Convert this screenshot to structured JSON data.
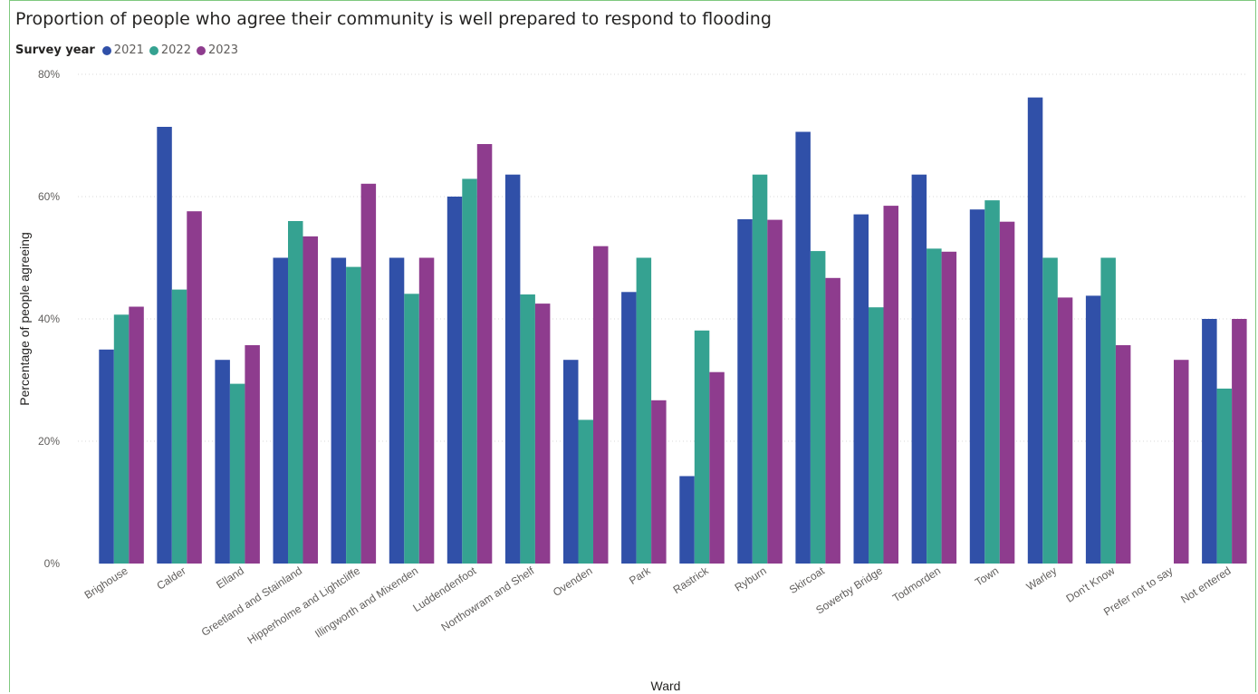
{
  "colors": {
    "2021": "#3050a8",
    "2022": "#35a291",
    "2023": "#8e3c8e",
    "grid": "#d9d9d9"
  },
  "legend": {
    "title": "Survey year"
  },
  "chart_data": {
    "type": "bar",
    "title": "Proportion of people who agree their community is well prepared to respond to flooding",
    "xlabel": "Ward",
    "ylabel": "Percentage of people agreeing",
    "ylim": [
      0,
      80
    ],
    "yticks": [
      "0%",
      "20%",
      "40%",
      "60%",
      "80%"
    ],
    "ytick_values": [
      0,
      20,
      40,
      60,
      80
    ],
    "grid": true,
    "legend_position": "top-left",
    "categories": [
      "Brighouse",
      "Calder",
      "Elland",
      "Greetland and Stainland",
      "Hipperholme and Lightcliffe",
      "Illingworth and Mixenden",
      "Luddendenfoot",
      "Northowram and Shelf",
      "Ovenden",
      "Park",
      "Rastrick",
      "Ryburn",
      "Skircoat",
      "Sowerby Bridge",
      "Todmorden",
      "Town",
      "Warley",
      "Don't Know",
      "Prefer not to say",
      "Not entered"
    ],
    "series": [
      {
        "name": "2021",
        "color": "#3050a8",
        "values": [
          35.0,
          71.4,
          33.3,
          50.0,
          50.0,
          50.0,
          60.0,
          63.6,
          33.3,
          44.4,
          14.3,
          56.3,
          70.6,
          57.1,
          63.6,
          57.9,
          76.2,
          43.8,
          null,
          40.0
        ]
      },
      {
        "name": "2022",
        "color": "#35a291",
        "values": [
          40.7,
          44.8,
          29.4,
          56.0,
          48.5,
          44.1,
          62.9,
          44.0,
          23.5,
          50.0,
          38.1,
          63.6,
          51.1,
          41.9,
          51.5,
          59.4,
          50.0,
          50.0,
          null,
          28.6
        ]
      },
      {
        "name": "2023",
        "color": "#8e3c8e",
        "values": [
          42.0,
          57.6,
          35.7,
          53.5,
          62.1,
          50.0,
          68.6,
          42.5,
          51.9,
          26.7,
          31.3,
          56.2,
          46.7,
          58.5,
          51.0,
          55.9,
          43.5,
          35.7,
          33.3,
          40.0
        ]
      }
    ]
  }
}
